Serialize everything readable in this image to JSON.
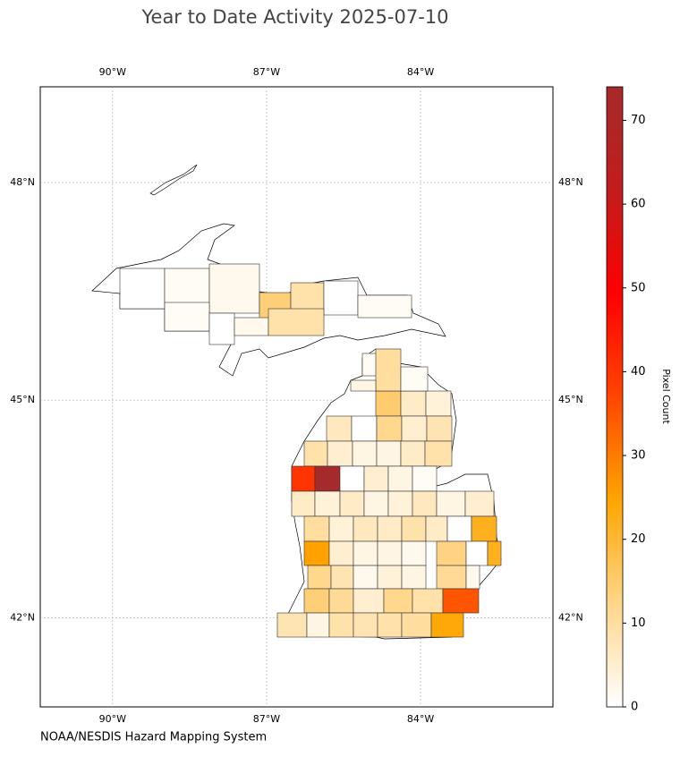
{
  "chart_data": {
    "type": "choropleth",
    "title": "Year to Date Activity 2025-07-10",
    "credit": "NOAA/NESDIS Hazard Mapping System",
    "colorbar_label": "Pixel Count",
    "xlim": [
      -91.41,
      -81.42
    ],
    "ylim": [
      40.77,
      49.32
    ],
    "xticks": [
      {
        "value": -90,
        "label": "90°W"
      },
      {
        "value": -87,
        "label": "87°W"
      },
      {
        "value": -84,
        "label": "84°W"
      }
    ],
    "yticks": [
      {
        "value": 42,
        "label": "42°N"
      },
      {
        "value": 45,
        "label": "45°N"
      },
      {
        "value": 48,
        "label": "48°N"
      }
    ],
    "grid": true,
    "clim": [
      0,
      74
    ],
    "cticks": [
      0,
      10,
      20,
      30,
      40,
      50,
      60,
      70
    ],
    "colormap": [
      "#ffffff",
      "#ffd68a",
      "#ffa500",
      "#ff4500",
      "#ff0000",
      "#c21d1d",
      "#a52a2a"
    ],
    "county_values": [
      15,
      6,
      4,
      7,
      0,
      12,
      5,
      8,
      9,
      5,
      3,
      3,
      6,
      9,
      40,
      74,
      0,
      5,
      3,
      1,
      6,
      4,
      6,
      3,
      4,
      7,
      3,
      5,
      10,
      4,
      7,
      6,
      9,
      6,
      0,
      22,
      25,
      5,
      3,
      3,
      2,
      13,
      0,
      22,
      12,
      8,
      2,
      4,
      3,
      11,
      2,
      14,
      11,
      5,
      12,
      9,
      35,
      8,
      3,
      9,
      8,
      9,
      10,
      24,
      0,
      1,
      2,
      14,
      9,
      0,
      1,
      1,
      0,
      2,
      9,
      1,
      10,
      1,
      3
    ]
  }
}
